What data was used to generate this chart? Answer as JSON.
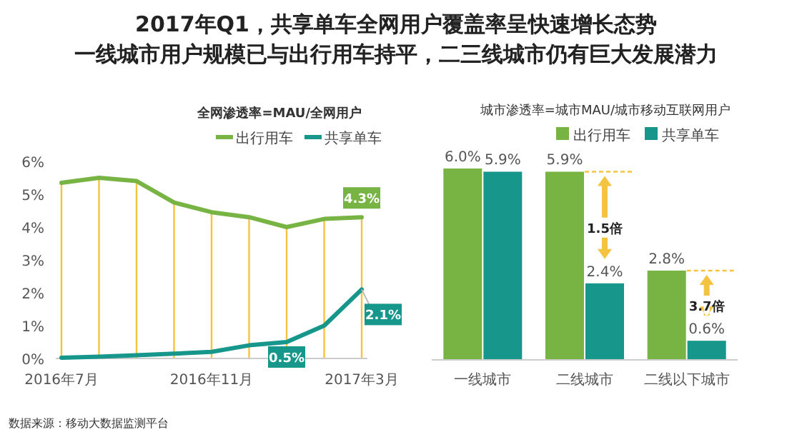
{
  "chart_data": [
    {
      "type": "other",
      "title": "2017年Q1，共享单车全网用户覆盖率呈快速增长态势",
      "subtitle": "一线城市用户规模已与出行用车持平，二三线城市仍有巨大发展潜力"
    },
    {
      "type": "line",
      "subtitle": "全网渗透率=MAU/全网用户",
      "categories": [
        "2016年7月",
        null,
        null,
        null,
        "2016年11月",
        null,
        null,
        null,
        "2017年3月"
      ],
      "series": [
        {
          "name": "出行用车",
          "color": "#78b444",
          "values": [
            5.35,
            5.5,
            5.4,
            4.75,
            4.45,
            4.3,
            4.0,
            4.25,
            4.3
          ],
          "value_labels": [
            null,
            null,
            null,
            null,
            null,
            null,
            null,
            null,
            "4.3%"
          ]
        },
        {
          "name": "共享单车",
          "color": "#17978c",
          "values": [
            0.02,
            0.05,
            0.1,
            0.15,
            0.2,
            0.4,
            0.5,
            1.0,
            2.1
          ],
          "value_labels": [
            null,
            null,
            null,
            null,
            null,
            null,
            "0.5%",
            null,
            "2.1%"
          ]
        }
      ],
      "ylim": [
        0,
        6
      ],
      "yticks": [
        {
          "value": 0,
          "label": "0%"
        },
        {
          "value": 1,
          "label": "1%"
        },
        {
          "value": 2,
          "label": "2%"
        },
        {
          "value": 3,
          "label": "3%"
        },
        {
          "value": 4,
          "label": "4%"
        },
        {
          "value": 5,
          "label": "5%"
        },
        {
          "value": 6,
          "label": "6%"
        }
      ],
      "grid": "x",
      "legend": "top right",
      "marker": "none",
      "line_style": "solid",
      "annotations": [
        "数据来源：移动大数据监测平台"
      ]
    },
    {
      "type": "bar",
      "subtitle": "城市渗透率=城市MAU/城市移动互联网用户",
      "categories": [
        "一线城市",
        "二线城市",
        "二线以下城市"
      ],
      "series": [
        {
          "name": "出行用车",
          "color": "#78b444",
          "values": [
            6.0,
            5.9,
            2.8
          ],
          "value_labels": [
            "6.0%",
            "5.9%",
            "2.8%"
          ]
        },
        {
          "name": "共享单车",
          "color": "#17978c",
          "values": [
            5.9,
            2.4,
            0.6
          ],
          "value_labels": [
            "5.9%",
            "2.4%",
            "0.6%"
          ]
        }
      ],
      "legend": "top right",
      "annotations": [
        {
          "text": "1.5倍",
          "x": "二线城市",
          "y": 4.15
        },
        {
          "text": "3.7倍",
          "x": "二线以下城市",
          "y": 1.7
        }
      ]
    }
  ]
}
